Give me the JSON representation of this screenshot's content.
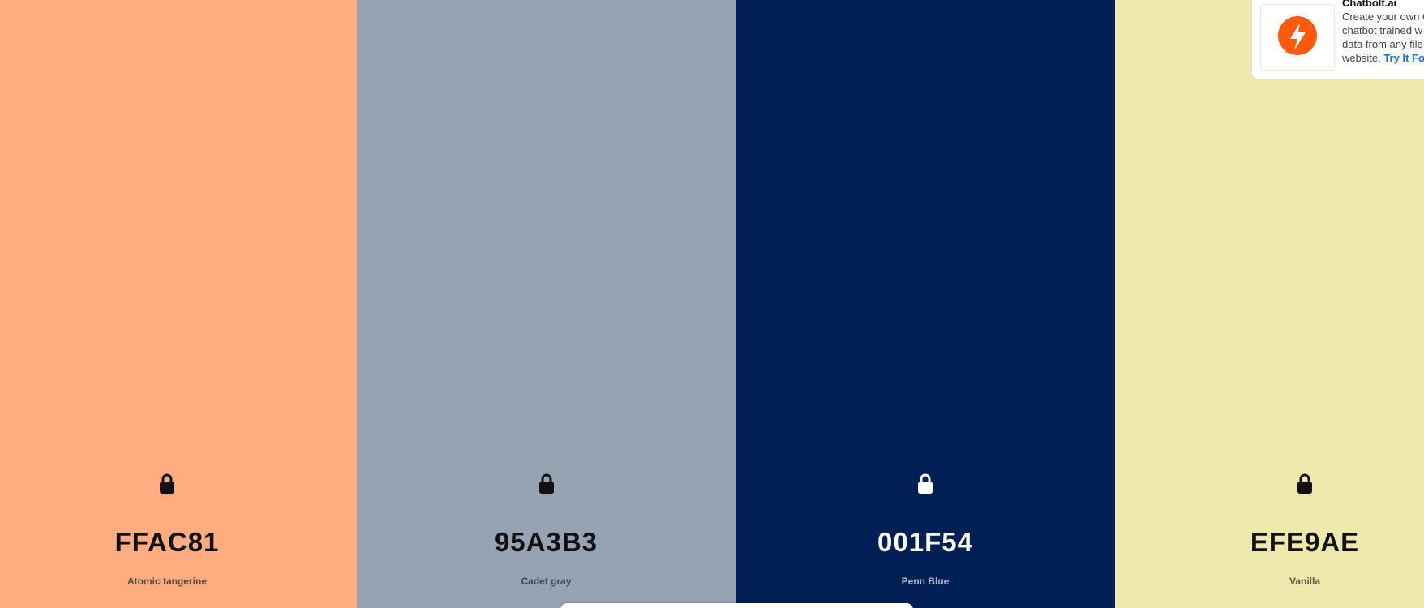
{
  "palette": [
    {
      "hex": "FFAC81",
      "name": "Atomic tangerine",
      "text_color": "#111111",
      "name_color": "#5a4a40"
    },
    {
      "hex": "95A3B3",
      "name": "Cadet gray",
      "text_color": "#111111",
      "name_color": "#3e4650"
    },
    {
      "hex": "001F54",
      "name": "Penn Blue",
      "text_color": "#ffffff",
      "name_color": "#aab4c8"
    },
    {
      "hex": "EFE9AE",
      "name": "Vanilla",
      "text_color": "#111111",
      "name_color": "#5a5840"
    }
  ],
  "ad": {
    "title": "Chatbolt.ai",
    "lines": [
      "Create your own C",
      "chatbot trained w",
      "data from any file"
    ],
    "last_line": "website.",
    "link": "Try It For"
  }
}
